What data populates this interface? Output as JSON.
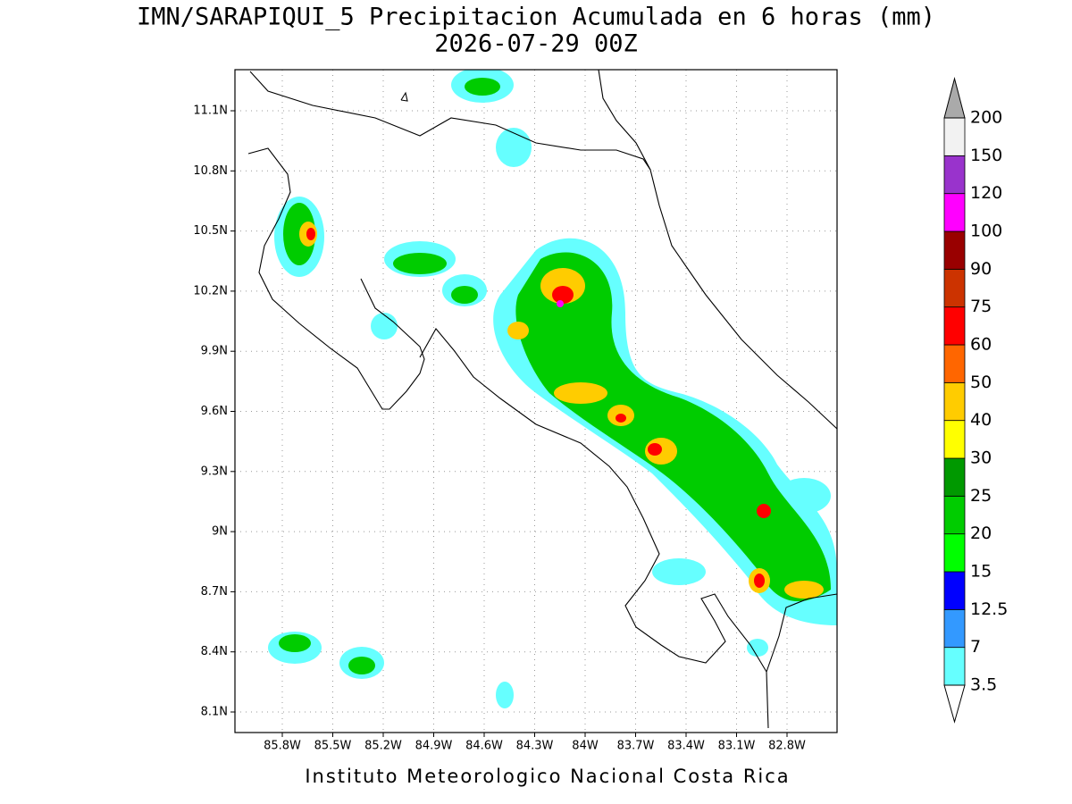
{
  "title": "IMN/SARAPIQUI_5 Precipitacion Acumulada en 6 horas (mm)",
  "subtitle": "2026-07-29 00Z",
  "map": {
    "xticks": [
      "85.8W",
      "85.5W",
      "85.2W",
      "84.9W",
      "84.6W",
      "84.3W",
      "84W",
      "83.7W",
      "83.4W",
      "83.1W",
      "82.8W"
    ],
    "yticks": [
      "11.1N",
      "10.8N",
      "10.5N",
      "10.2N",
      "9.9N",
      "9.6N",
      "9.3N",
      "9N",
      "8.7N",
      "8.4N",
      "8.1N"
    ]
  },
  "colorbar": {
    "levels": [
      3.5,
      7,
      12.5,
      15,
      20,
      25,
      30,
      40,
      50,
      60,
      75,
      90,
      100,
      120,
      150,
      200
    ],
    "colors": [
      "#66ffff",
      "#3399ff",
      "#0000ff",
      "#00ff00",
      "#00cc00",
      "#009900",
      "#ffff00",
      "#ffcc00",
      "#ff6600",
      "#ff0000",
      "#cc3300",
      "#990000",
      "#ff00ff",
      "#9933cc",
      "#f2f2f2"
    ],
    "under_color": "#ffffff",
    "over_color": "#aaaaaa"
  },
  "footer": "Instituto Meteorologico Nacional Costa Rica"
}
